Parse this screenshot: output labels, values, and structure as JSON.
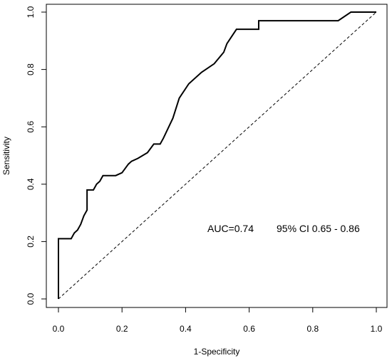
{
  "chart_data": {
    "type": "line",
    "title": "",
    "xlabel": "1-Specificity",
    "ylabel": "Sensitivity",
    "xlim": [
      0,
      1
    ],
    "ylim": [
      0,
      1
    ],
    "x_ticks": [
      "0.0",
      "0.2",
      "0.4",
      "0.6",
      "0.8",
      "1.0"
    ],
    "y_ticks": [
      "0.0",
      "0.2",
      "0.4",
      "0.6",
      "0.8",
      "1.0"
    ],
    "grid": false,
    "legend": "none",
    "annotation": {
      "auc_text": "AUC=0.74",
      "ci_text": "95% CI 0.65 - 0.86"
    },
    "series": [
      {
        "style": "solid",
        "color": "#000000",
        "x": [
          0,
          0,
          0.04,
          0.05,
          0.06,
          0.07,
          0.08,
          0.09,
          0.09,
          0.11,
          0.12,
          0.13,
          0.14,
          0.18,
          0.2,
          0.22,
          0.23,
          0.25,
          0.28,
          0.3,
          0.32,
          0.33,
          0.36,
          0.38,
          0.41,
          0.45,
          0.49,
          0.52,
          0.53,
          0.56,
          0.63,
          0.63,
          0.88,
          0.92,
          1.0
        ],
        "y": [
          0,
          0.21,
          0.21,
          0.23,
          0.24,
          0.26,
          0.29,
          0.31,
          0.38,
          0.38,
          0.4,
          0.41,
          0.43,
          0.43,
          0.44,
          0.47,
          0.48,
          0.49,
          0.51,
          0.54,
          0.54,
          0.56,
          0.63,
          0.7,
          0.75,
          0.79,
          0.82,
          0.86,
          0.89,
          0.94,
          0.94,
          0.97,
          0.97,
          1.0,
          1.0
        ]
      },
      {
        "style": "dashed",
        "color": "#000000",
        "x": [
          0,
          1
        ],
        "y": [
          0,
          1
        ]
      }
    ]
  }
}
